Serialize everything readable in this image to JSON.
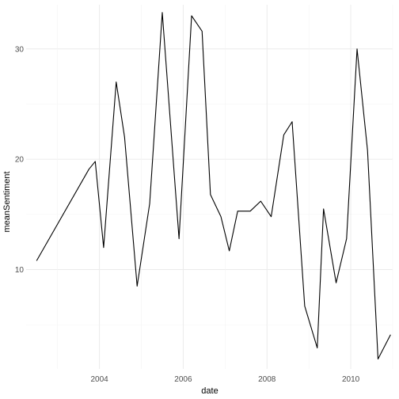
{
  "chart_data": {
    "type": "line",
    "xlabel": "date",
    "ylabel": "meanSentiment",
    "x_ticks": [
      "2004",
      "2006",
      "2008",
      "2010"
    ],
    "y_ticks": [
      "10",
      "20",
      "30"
    ],
    "ylim": [
      1,
      34
    ],
    "xlim": [
      2002.25,
      2011.0
    ],
    "grid": true,
    "line_color": "#000000",
    "series": [
      {
        "x": [
          2002.5,
          2003.75,
          2003.9,
          2004.1,
          2004.4,
          2004.6,
          2004.9,
          2005.2,
          2005.5,
          2005.9,
          2006.2,
          2006.45,
          2006.65,
          2006.9,
          2007.1,
          2007.3,
          2007.6,
          2007.85,
          2008.1,
          2008.4,
          2008.6,
          2008.9,
          2009.2,
          2009.35,
          2009.65,
          2009.9,
          2010.15,
          2010.4,
          2010.65,
          2010.95
        ],
        "y": [
          10.8,
          19.1,
          19.8,
          12.0,
          27.0,
          22.0,
          8.5,
          16.0,
          33.3,
          12.8,
          33.0,
          31.6,
          16.8,
          14.8,
          11.7,
          15.3,
          15.3,
          16.2,
          14.8,
          22.2,
          23.4,
          6.7,
          2.9,
          15.5,
          8.8,
          12.8,
          30.0,
          20.8,
          1.9,
          4.1
        ]
      }
    ]
  }
}
